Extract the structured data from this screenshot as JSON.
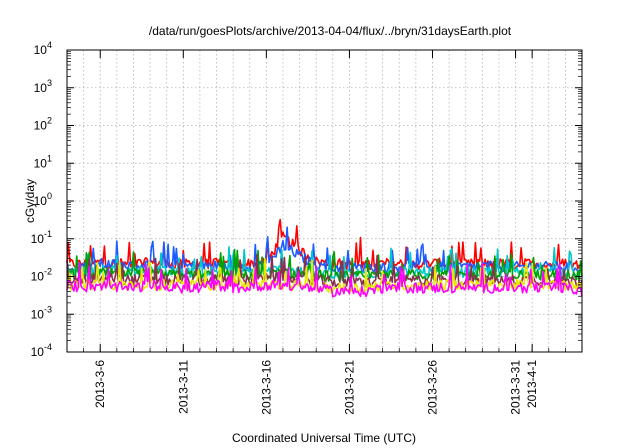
{
  "chart_data": {
    "type": "line",
    "title": "/data/run/goesPlots/archive/2013-04-04/flux/../bryn/31daysEarth.plot",
    "xlabel": "Coordinated Universal Time (UTC)",
    "ylabel": "cGy/day",
    "yscale": "log",
    "ylim": [
      0.0001,
      10000
    ],
    "xlim": [
      "2013-03-04",
      "2013-04-04"
    ],
    "grid": true,
    "y_ticks": [
      {
        "base": "10",
        "exp": "4"
      },
      {
        "base": "10",
        "exp": "3"
      },
      {
        "base": "10",
        "exp": "2"
      },
      {
        "base": "10",
        "exp": "1"
      },
      {
        "base": "10",
        "exp": "0"
      },
      {
        "base": "10",
        "exp": "-1"
      },
      {
        "base": "10",
        "exp": "-2"
      },
      {
        "base": "10",
        "exp": "-3"
      },
      {
        "base": "10",
        "exp": "-4"
      }
    ],
    "x_ticks": [
      {
        "date": "2013-03-06",
        "label": "2013-3-6"
      },
      {
        "date": "2013-03-11",
        "label": "2013-3-11"
      },
      {
        "date": "2013-03-16",
        "label": "2013-3-16"
      },
      {
        "date": "2013-03-21",
        "label": "2013-3-21"
      },
      {
        "date": "2013-03-26",
        "label": "2013-3-26"
      },
      {
        "date": "2013-03-31",
        "label": "2013-3-31"
      },
      {
        "date": "2013-04-01",
        "label": "2013-4-1"
      }
    ],
    "series": [
      {
        "color": "#ff0000",
        "values": [
          0.022,
          0.021,
          0.024,
          0.022,
          0.022,
          0.023,
          0.022,
          0.021,
          0.022,
          0.022,
          0.021,
          0.022,
          0.024,
          0.11,
          0.05,
          0.025,
          0.022,
          0.021,
          0.021,
          0.022,
          0.022,
          0.021,
          0.022,
          0.022,
          0.021,
          0.022,
          0.022,
          0.021,
          0.022,
          0.021,
          0.022,
          0.02
        ]
      },
      {
        "color": "#1a5cff",
        "values": [
          0.02,
          0.019,
          0.022,
          0.02,
          0.019,
          0.02,
          0.019,
          0.019,
          0.019,
          0.019,
          0.018,
          0.019,
          0.02,
          0.07,
          0.035,
          0.02,
          0.017,
          0.017,
          0.017,
          0.018,
          0.018,
          0.018,
          0.018,
          0.018,
          0.018,
          0.019,
          0.018,
          0.018,
          0.019,
          0.018,
          0.018,
          0.017
        ]
      },
      {
        "color": "#00c8c8",
        "values": [
          0.014,
          0.013,
          0.014,
          0.014,
          0.013,
          0.014,
          0.013,
          0.013,
          0.013,
          0.014,
          0.013,
          0.013,
          0.014,
          0.015,
          0.014,
          0.013,
          0.012,
          0.012,
          0.012,
          0.013,
          0.013,
          0.013,
          0.013,
          0.013,
          0.013,
          0.013,
          0.013,
          0.013,
          0.013,
          0.013,
          0.013,
          0.012
        ]
      },
      {
        "color": "#00a000",
        "values": [
          0.012,
          0.011,
          0.012,
          0.012,
          0.011,
          0.012,
          0.011,
          0.011,
          0.011,
          0.012,
          0.011,
          0.011,
          0.012,
          0.012,
          0.012,
          0.011,
          0.01,
          0.01,
          0.01,
          0.011,
          0.011,
          0.011,
          0.011,
          0.011,
          0.011,
          0.011,
          0.011,
          0.011,
          0.011,
          0.011,
          0.011,
          0.01
        ]
      },
      {
        "color": "#8b2f4f",
        "values": [
          0.009,
          0.008,
          0.009,
          0.009,
          0.008,
          0.009,
          0.008,
          0.008,
          0.008,
          0.009,
          0.008,
          0.008,
          0.009,
          0.009,
          0.008,
          0.008,
          0.007,
          0.007,
          0.007,
          0.008,
          0.008,
          0.008,
          0.008,
          0.008,
          0.008,
          0.008,
          0.008,
          0.008,
          0.008,
          0.008,
          0.008,
          0.007
        ]
      },
      {
        "color": "#e8e800",
        "values": [
          0.006,
          0.006,
          0.006,
          0.006,
          0.006,
          0.006,
          0.006,
          0.006,
          0.006,
          0.006,
          0.006,
          0.006,
          0.006,
          0.006,
          0.006,
          0.005,
          0.005,
          0.005,
          0.005,
          0.006,
          0.006,
          0.006,
          0.006,
          0.006,
          0.006,
          0.006,
          0.006,
          0.006,
          0.006,
          0.006,
          0.006,
          0.005
        ]
      },
      {
        "color": "#ff00ff",
        "values": [
          0.006,
          0.005,
          0.006,
          0.005,
          0.005,
          0.006,
          0.005,
          0.005,
          0.005,
          0.006,
          0.005,
          0.005,
          0.006,
          0.006,
          0.005,
          0.005,
          0.004,
          0.004,
          0.004,
          0.005,
          0.005,
          0.005,
          0.005,
          0.005,
          0.005,
          0.005,
          0.005,
          0.005,
          0.005,
          0.005,
          0.005,
          0.004
        ]
      }
    ]
  }
}
